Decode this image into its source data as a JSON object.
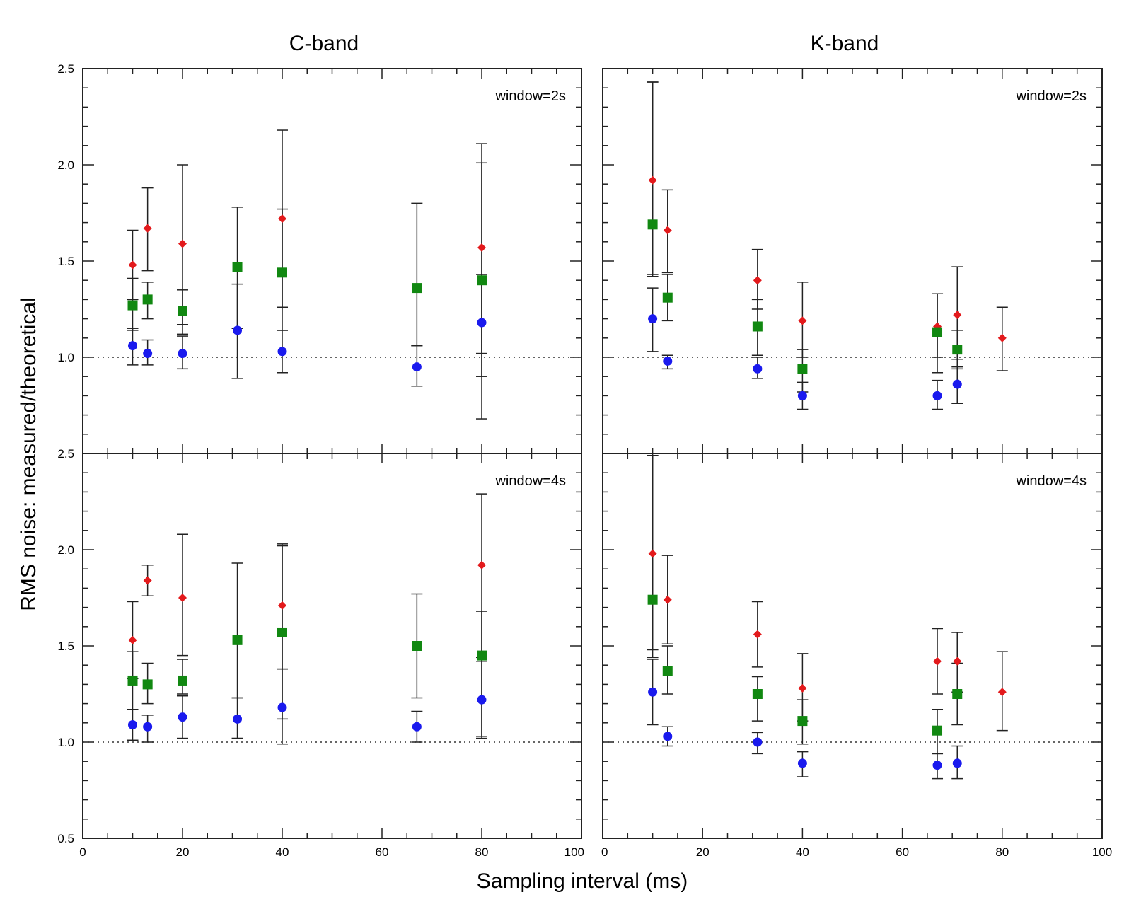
{
  "figure": {
    "ylabel": "RMS noise: measured/theoretical",
    "xlabel": "Sampling interval (ms)",
    "column_titles": [
      "C-band",
      "K-band"
    ]
  },
  "chart_data": [
    {
      "type": "scatter",
      "panel": "C-band, window=2s",
      "band": "C-band",
      "annotation": "window=2s",
      "xlim": [
        0,
        100
      ],
      "ylim": [
        0.5,
        2.5
      ],
      "x_ticks": [
        "0",
        "20",
        "40",
        "60",
        "80",
        "100"
      ],
      "y_ticks": [
        "1.0",
        "1.5",
        "2.0",
        "2.5"
      ],
      "reference_line": 1.0,
      "series": [
        {
          "name": "red-diamond",
          "color": "#e31a1c",
          "marker": "diamond",
          "points": [
            [
              10,
              1.48,
              1.3,
              1.66
            ],
            [
              13,
              1.67,
              1.45,
              1.88
            ],
            [
              20,
              1.59,
              1.17,
              2.0
            ],
            [
              40,
              1.72,
              1.26,
              2.18
            ],
            [
              80,
              1.57,
              1.02,
              2.11
            ]
          ]
        },
        {
          "name": "green-square",
          "color": "#118811",
          "marker": "square",
          "points": [
            [
              10,
              1.27,
              1.14,
              1.41
            ],
            [
              13,
              1.3,
              1.2,
              1.39
            ],
            [
              20,
              1.24,
              1.12,
              1.35
            ],
            [
              31,
              1.47,
              1.15,
              1.78
            ],
            [
              40,
              1.44,
              1.14,
              1.77
            ],
            [
              67,
              1.36,
              1.06,
              1.8
            ],
            [
              80,
              1.4,
              0.9,
              2.01
            ]
          ]
        },
        {
          "name": "blue-circle",
          "color": "#1a1aee",
          "marker": "circle",
          "points": [
            [
              10,
              1.06,
              0.96,
              1.15
            ],
            [
              13,
              1.02,
              0.96,
              1.09
            ],
            [
              20,
              1.02,
              0.94,
              1.11
            ],
            [
              31,
              1.14,
              0.89,
              1.38
            ],
            [
              40,
              1.03,
              0.92,
              1.14
            ],
            [
              67,
              0.95,
              0.85,
              1.06
            ],
            [
              80,
              1.18,
              0.68,
              1.43
            ]
          ]
        }
      ]
    },
    {
      "type": "scatter",
      "panel": "K-band, window=2s",
      "band": "K-band",
      "annotation": "window=2s",
      "xlim": [
        0,
        100
      ],
      "ylim": [
        0.5,
        2.5
      ],
      "x_ticks": [
        "0",
        "20",
        "40",
        "60",
        "80",
        "100"
      ],
      "y_ticks": [],
      "reference_line": 1.0,
      "series": [
        {
          "name": "red-diamond",
          "color": "#e31a1c",
          "marker": "diamond",
          "points": [
            [
              10,
              1.92,
              1.43,
              2.43
            ],
            [
              13,
              1.66,
              1.44,
              1.87
            ],
            [
              31,
              1.4,
              1.25,
              1.56
            ],
            [
              40,
              1.19,
              1.0,
              1.39
            ],
            [
              67,
              1.16,
              1.0,
              1.33
            ],
            [
              71,
              1.22,
              0.99,
              1.47
            ],
            [
              80,
              1.1,
              0.93,
              1.26
            ]
          ]
        },
        {
          "name": "green-square",
          "color": "#118811",
          "marker": "square",
          "points": [
            [
              10,
              1.69,
              1.42,
              2.43
            ],
            [
              13,
              1.31,
              1.19,
              1.43
            ],
            [
              31,
              1.16,
              1.01,
              1.3
            ],
            [
              40,
              0.94,
              0.82,
              1.04
            ],
            [
              67,
              1.13,
              0.92,
              1.33
            ],
            [
              71,
              1.04,
              0.94,
              1.14
            ]
          ]
        },
        {
          "name": "blue-circle",
          "color": "#1a1aee",
          "marker": "circle",
          "points": [
            [
              10,
              1.2,
              1.03,
              1.36
            ],
            [
              13,
              0.98,
              0.94,
              1.01
            ],
            [
              31,
              0.94,
              0.89,
              1.0
            ],
            [
              40,
              0.8,
              0.73,
              0.87
            ],
            [
              67,
              0.8,
              0.73,
              0.88
            ],
            [
              71,
              0.86,
              0.76,
              0.95
            ]
          ]
        }
      ]
    },
    {
      "type": "scatter",
      "panel": "C-band, window=4s",
      "band": "C-band",
      "annotation": "window=4s",
      "xlim": [
        0,
        100
      ],
      "ylim": [
        0.5,
        2.5
      ],
      "x_ticks": [
        "0",
        "20",
        "40",
        "60",
        "80",
        "100"
      ],
      "y_ticks": [
        "0.5",
        "1.0",
        "1.5",
        "2.0",
        "2.5"
      ],
      "reference_line": 1.0,
      "series": [
        {
          "name": "red-diamond",
          "color": "#e31a1c",
          "marker": "diamond",
          "points": [
            [
              10,
              1.53,
              1.33,
              1.73
            ],
            [
              13,
              1.84,
              1.76,
              1.92
            ],
            [
              20,
              1.75,
              1.45,
              2.08
            ],
            [
              40,
              1.71,
              1.38,
              2.02
            ],
            [
              80,
              1.92,
              1.42,
              2.29
            ]
          ]
        },
        {
          "name": "green-square",
          "color": "#118811",
          "marker": "square",
          "points": [
            [
              10,
              1.32,
              1.17,
              1.47
            ],
            [
              13,
              1.3,
              1.2,
              1.41
            ],
            [
              20,
              1.32,
              1.25,
              1.43
            ],
            [
              31,
              1.53,
              1.23,
              1.93
            ],
            [
              40,
              1.57,
              1.12,
              2.03
            ],
            [
              67,
              1.5,
              1.23,
              1.77
            ],
            [
              80,
              1.45,
              1.02,
              1.68
            ]
          ]
        },
        {
          "name": "blue-circle",
          "color": "#1a1aee",
          "marker": "circle",
          "points": [
            [
              10,
              1.09,
              1.01,
              1.17
            ],
            [
              13,
              1.08,
              1.0,
              1.14
            ],
            [
              20,
              1.13,
              1.02,
              1.24
            ],
            [
              31,
              1.12,
              1.02,
              1.23
            ],
            [
              40,
              1.18,
              0.99,
              1.38
            ],
            [
              67,
              1.08,
              1.0,
              1.16
            ],
            [
              80,
              1.22,
              1.03,
              1.44
            ]
          ]
        }
      ]
    },
    {
      "type": "scatter",
      "panel": "K-band, window=4s",
      "band": "K-band",
      "annotation": "window=4s",
      "xlim": [
        0,
        100
      ],
      "ylim": [
        0.5,
        2.5
      ],
      "x_ticks": [
        "0",
        "20",
        "40",
        "60",
        "80",
        "100"
      ],
      "y_ticks": [],
      "reference_line": 1.0,
      "series": [
        {
          "name": "red-diamond",
          "color": "#e31a1c",
          "marker": "diamond",
          "points": [
            [
              10,
              1.98,
              1.48,
              2.49
            ],
            [
              13,
              1.74,
              1.51,
              1.97
            ],
            [
              31,
              1.56,
              1.39,
              1.73
            ],
            [
              40,
              1.28,
              1.11,
              1.46
            ],
            [
              67,
              1.42,
              1.25,
              1.59
            ],
            [
              71,
              1.42,
              1.26,
              1.57
            ],
            [
              80,
              1.26,
              1.06,
              1.47
            ]
          ]
        },
        {
          "name": "green-square",
          "color": "#118811",
          "marker": "square",
          "points": [
            [
              10,
              1.74,
              1.44,
              2.49
            ],
            [
              13,
              1.37,
              1.25,
              1.5
            ],
            [
              31,
              1.25,
              1.11,
              1.34
            ],
            [
              40,
              1.11,
              0.99,
              1.22
            ],
            [
              67,
              1.06,
              0.94,
              1.17
            ],
            [
              71,
              1.25,
              1.09,
              1.41
            ]
          ]
        },
        {
          "name": "blue-circle",
          "color": "#1a1aee",
          "marker": "circle",
          "points": [
            [
              10,
              1.26,
              1.09,
              1.43
            ],
            [
              13,
              1.03,
              0.98,
              1.08
            ],
            [
              31,
              1.0,
              0.94,
              1.05
            ],
            [
              40,
              0.89,
              0.82,
              0.95
            ],
            [
              67,
              0.88,
              0.81,
              0.94
            ],
            [
              71,
              0.89,
              0.81,
              0.98
            ]
          ]
        }
      ]
    }
  ]
}
